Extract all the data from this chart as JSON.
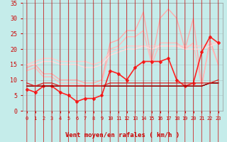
{
  "xlabel": "Vent moyen/en rafales ( km/h )",
  "xlim": [
    -0.5,
    23.5
  ],
  "ylim": [
    0,
    35
  ],
  "yticks": [
    0,
    5,
    10,
    15,
    20,
    25,
    30,
    35
  ],
  "xticks": [
    0,
    1,
    2,
    3,
    4,
    5,
    6,
    7,
    8,
    9,
    10,
    11,
    12,
    13,
    14,
    15,
    16,
    17,
    18,
    19,
    20,
    21,
    22,
    23
  ],
  "bg_color": "#c5ecea",
  "grid_color": "#b0cece",
  "text_color": "#cc0000",
  "lines": [
    {
      "y": [
        14,
        15,
        12,
        12,
        10,
        10,
        10,
        9,
        9,
        10,
        22,
        23,
        26,
        26,
        32,
        16,
        30,
        33,
        30,
        20,
        30,
        8,
        23,
        15
      ],
      "color": "#ffaaaa",
      "lw": 1.0,
      "marker": null
    },
    {
      "y": [
        13,
        14,
        11,
        11,
        9,
        9,
        9,
        8,
        8,
        9,
        20,
        21,
        24,
        24,
        26,
        15,
        22,
        22,
        22,
        20,
        22,
        8,
        22,
        15
      ],
      "color": "#ffbbbb",
      "lw": 1.0,
      "marker": null
    },
    {
      "y": [
        15,
        16,
        17,
        17,
        16,
        16,
        16,
        16,
        15,
        16,
        19,
        20,
        21,
        21,
        21,
        21,
        21,
        21,
        21,
        21,
        21,
        21,
        22,
        22
      ],
      "color": "#ffcccc",
      "lw": 1.0,
      "marker": null
    },
    {
      "y": [
        15,
        15,
        16,
        16,
        15,
        15,
        15,
        14,
        14,
        15,
        18,
        19,
        20,
        20,
        21,
        20,
        21,
        21,
        21,
        20,
        20,
        20,
        21,
        22
      ],
      "color": "#ffdddd",
      "lw": 1.0,
      "marker": null
    },
    {
      "y": [
        7,
        6,
        8,
        8,
        6,
        5,
        3,
        4,
        4,
        5,
        13,
        12,
        10,
        14,
        16,
        16,
        16,
        17,
        10,
        8,
        9,
        19,
        24,
        22
      ],
      "color": "#ff2222",
      "lw": 1.2,
      "marker": "D",
      "markersize": 2.0
    },
    {
      "y": [
        8,
        8,
        8,
        8,
        8,
        8,
        8,
        8,
        8,
        8,
        8,
        8,
        8,
        8,
        8,
        8,
        8,
        8,
        8,
        8,
        8,
        8,
        9,
        9
      ],
      "color": "#cc0000",
      "lw": 0.8,
      "marker": null
    },
    {
      "y": [
        8,
        8,
        8,
        8,
        8,
        8,
        8,
        8,
        8,
        8,
        8,
        8,
        8,
        8,
        8,
        8,
        8,
        8,
        8,
        8,
        8,
        8,
        9,
        9
      ],
      "color": "#aa0000",
      "lw": 0.8,
      "marker": null
    },
    {
      "y": [
        8,
        8,
        8,
        8,
        8,
        8,
        8,
        8,
        8,
        8,
        8,
        8,
        8,
        8,
        8,
        8,
        8,
        8,
        8,
        8,
        8,
        8,
        9,
        9
      ],
      "color": "#880000",
      "lw": 0.8,
      "marker": null
    },
    {
      "y": [
        9,
        8,
        9,
        9,
        8,
        8,
        8,
        8,
        8,
        8,
        9,
        9,
        9,
        9,
        9,
        9,
        9,
        9,
        9,
        9,
        9,
        9,
        9,
        10
      ],
      "color": "#dd2222",
      "lw": 0.9,
      "marker": null
    }
  ]
}
